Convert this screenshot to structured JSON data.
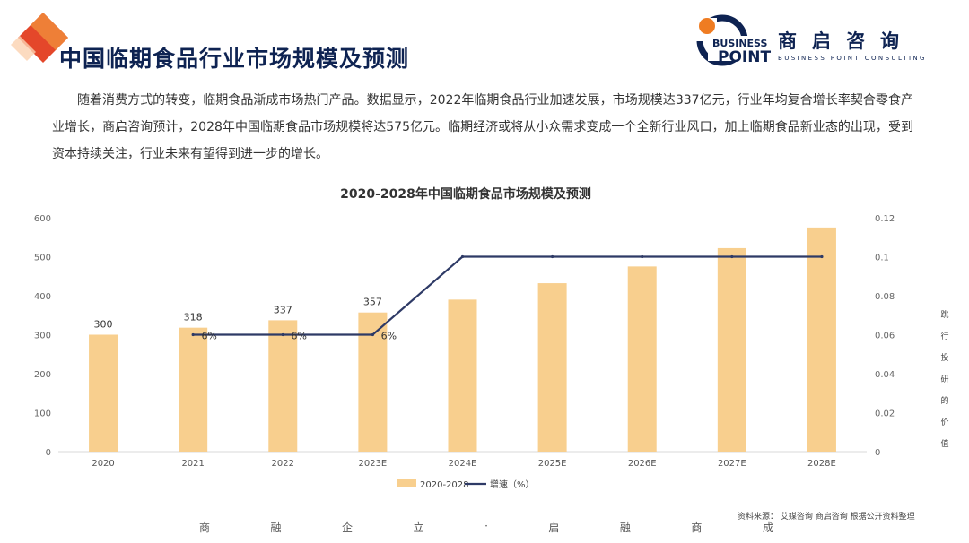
{
  "colors": {
    "title": "#0e2352",
    "bar": "#f8cf8e",
    "line": "#2e3a66",
    "accent": "#e4472a"
  },
  "page": {
    "title": "中国临期食品行业市场规模及预测",
    "intro": "随着消费方式的转变，临期食品渐成市场热门产品。数据显示，2022年临期食品行业加速发展，市场规模达337亿元，行业年均复合增长率契合零食产业增长，商启咨询预计，2028年中国临期食品市场规模将达575亿元。临期经济或将从小众需求变成一个全新行业风口，加上临期食品新业态的出现，受到资本持续关注，行业未来有望得到进一步的增长。",
    "side_note": "跳行投研的价值",
    "footer_slogan": [
      "商",
      "融",
      "企",
      "立",
      "·",
      "启",
      "融",
      "商",
      "成"
    ],
    "source": "资料来源： 艾媒咨询 商启咨询 根据公开资料整理"
  },
  "logo": {
    "mark_top": "BUSINESS",
    "mark_bottom": "POINT",
    "cn": "商启咨询",
    "en": "BUSINESS POINT CONSULTING",
    "icon": "company-logo-icon"
  },
  "chart_data": {
    "type": "bar",
    "title": "2020-2028年中国临期食品市场规模及预测",
    "categories": [
      "2020",
      "2021",
      "2022",
      "2023E",
      "2024E",
      "2025E",
      "2026E",
      "2027E",
      "2028E"
    ],
    "series": [
      {
        "name": "2020-2028",
        "type": "bar",
        "axis": "left",
        "values": [
          300,
          318,
          337,
          357,
          390,
          432,
          475,
          522,
          575
        ],
        "labels": [
          "300",
          "318",
          "337",
          "357",
          "",
          "",
          "",
          "",
          ""
        ]
      },
      {
        "name": "增速（%）",
        "type": "line",
        "axis": "right",
        "values": [
          null,
          0.06,
          0.06,
          0.06,
          0.1,
          0.1,
          0.1,
          0.1,
          0.1
        ],
        "labels": [
          "",
          "6%",
          "6%",
          "6%",
          "",
          "",
          "",
          "",
          ""
        ]
      }
    ],
    "y_left": {
      "min": 0,
      "max": 600,
      "ticks": [
        "0",
        "100",
        "200",
        "300",
        "400",
        "500",
        "600"
      ]
    },
    "y_right": {
      "min": 0,
      "max": 0.12,
      "ticks": [
        "0",
        "0.02",
        "0.04",
        "0.06",
        "0.08",
        "0.1",
        "0.12"
      ]
    },
    "legend_position": "bottom",
    "grid": false
  }
}
